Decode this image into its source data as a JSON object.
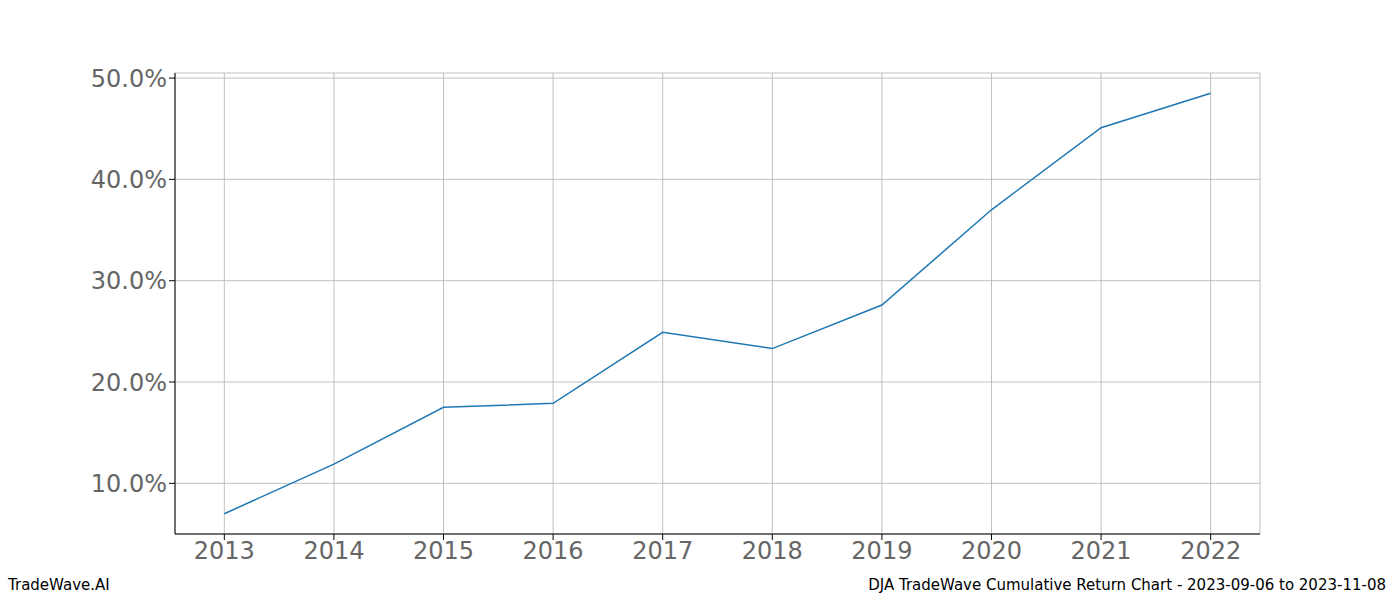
{
  "chart_data": {
    "type": "line",
    "x": [
      2013,
      2014,
      2015,
      2016,
      2017,
      2018,
      2019,
      2020,
      2021,
      2022
    ],
    "values": [
      7.0,
      11.9,
      17.5,
      17.9,
      24.9,
      23.3,
      27.6,
      37.0,
      45.1,
      48.5
    ],
    "color": "#1f77b4",
    "xlim": [
      2012.55,
      2022.45
    ],
    "xticks": [
      2013,
      2014,
      2015,
      2016,
      2017,
      2018,
      2019,
      2020,
      2021,
      2022
    ],
    "ylim": [
      5.0,
      50.5
    ],
    "yticks": [
      {
        "value": 10,
        "label": "10.0%"
      },
      {
        "value": 20,
        "label": "20.0%"
      },
      {
        "value": 30,
        "label": "30.0%"
      },
      {
        "value": 40,
        "label": "40.0%"
      },
      {
        "value": 50,
        "label": "50.0%"
      }
    ],
    "grid": true,
    "annotations": [
      "TradeWave.AI",
      "DJA TradeWave Cumulative Return Chart - 2023-09-06 to 2023-11-08"
    ]
  }
}
